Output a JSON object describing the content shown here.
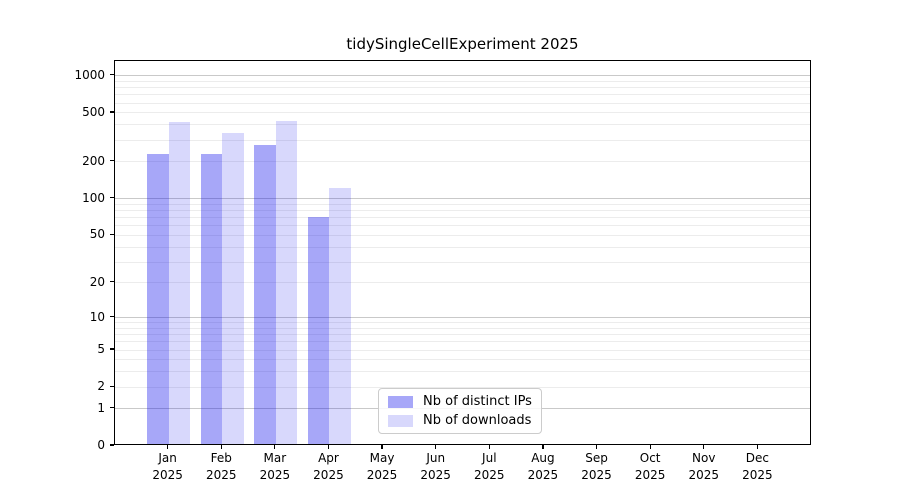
{
  "chart_data": {
    "type": "bar",
    "title": "tidySingleCellExperiment 2025",
    "categories": [
      "Jan",
      "Feb",
      "Mar",
      "Apr",
      "May",
      "Jun",
      "Jul",
      "Aug",
      "Sep",
      "Oct",
      "Nov",
      "Dec"
    ],
    "x_year": "2025",
    "series": [
      {
        "name": "Nb of distinct IPs",
        "key": "distinct-ips",
        "color": "rgba(10,10,235,0.36)",
        "values": [
          234,
          231,
          272,
          71,
          null,
          null,
          null,
          null,
          null,
          null,
          null,
          null
        ]
      },
      {
        "name": "Nb of downloads",
        "key": "downloads",
        "color": "rgba(10,10,235,0.16)",
        "values": [
          425,
          345,
          431,
          123,
          null,
          null,
          null,
          null,
          null,
          null,
          null,
          null
        ]
      }
    ],
    "yscale": "log1p",
    "yticks": [
      0,
      1,
      2,
      5,
      10,
      20,
      50,
      100,
      200,
      500,
      1000
    ],
    "ylim": [
      0,
      1320
    ],
    "xlabel": "",
    "ylabel": "",
    "grid": "horizontal",
    "grid_major_values": [
      1,
      10,
      100,
      1000
    ],
    "legend_position": "lower-center-left",
    "colors": {
      "grid_minor": "#ececec",
      "grid_major": "#c9c9c9",
      "spine": "#000000",
      "background": "#ffffff"
    }
  }
}
